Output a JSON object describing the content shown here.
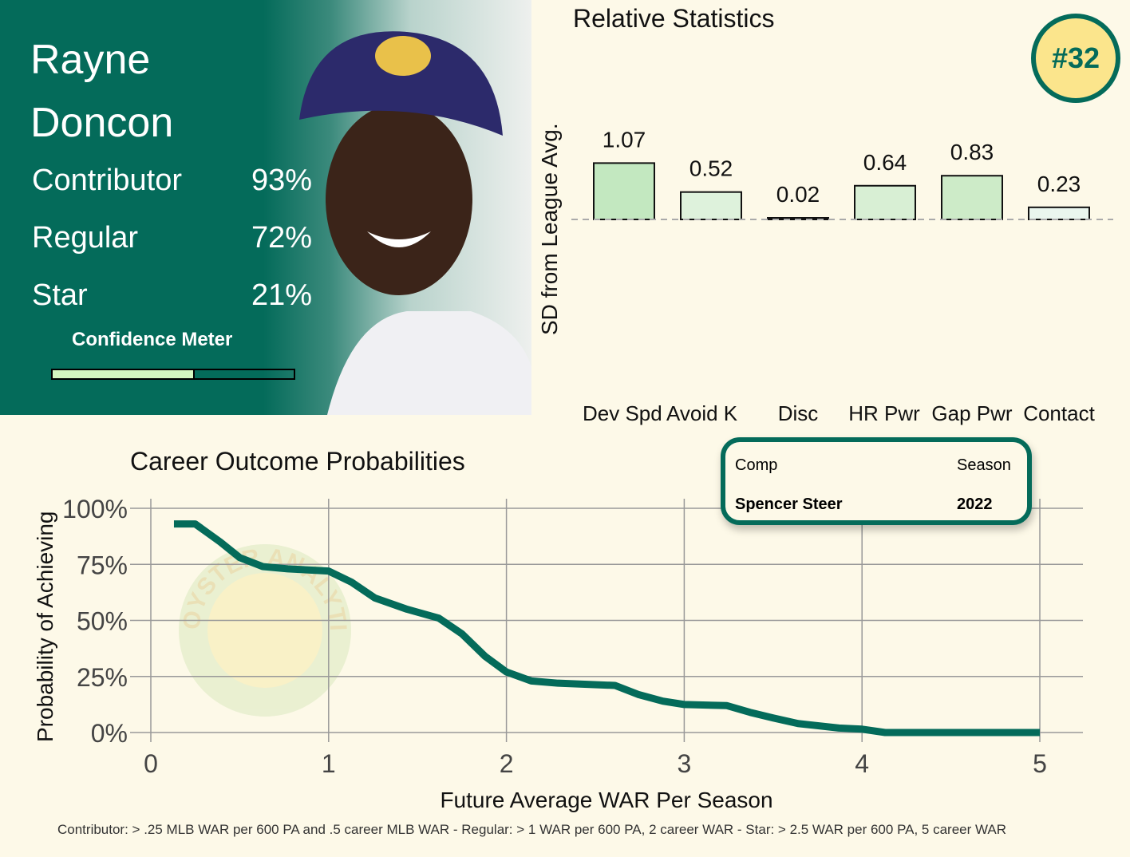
{
  "player": {
    "first_name": "Rayne",
    "last_name": "Doncon",
    "rank": "#32"
  },
  "levels": [
    {
      "label": "Contributor",
      "pct": "93%"
    },
    {
      "label": "Regular",
      "pct": "72%"
    },
    {
      "label": "Star",
      "pct": "21%"
    }
  ],
  "confidence": {
    "label": "Confidence Meter",
    "value": 0.59,
    "fill_color": "#d4f7c0"
  },
  "comp": {
    "comp_header": "Comp",
    "season_header": "Season",
    "comp_name": "Spencer Steer",
    "season": "2022"
  },
  "colors": {
    "brand_green": "#046b5a",
    "badge_yellow": "#fbe58c",
    "background": "#fdf9e8"
  },
  "watermark": "OYSTER ANALYTICS",
  "footnote": "Contributor: > .25 MLB WAR per 600 PA and .5 career MLB WAR - Regular: > 1 WAR per 600 PA, 2 career WAR - Star: > 2.5 WAR per 600 PA, 5 career WAR",
  "chart_data": [
    {
      "type": "bar",
      "title": "Relative Statistics",
      "ylabel": "SD from League Avg.",
      "xlabel": "",
      "categories": [
        "Dev Spd",
        "Avoid K",
        "Disc",
        "HR Pwr",
        "Gap Pwr",
        "Contact"
      ],
      "values": [
        1.07,
        0.52,
        0.02,
        0.64,
        0.83,
        0.23
      ],
      "data_labels": [
        "1.07",
        "0.52",
        "0.02",
        "0.64",
        "0.83",
        "0.23"
      ],
      "ylim": [
        -3,
        1.5
      ],
      "reference_line": 0,
      "bar_colors": [
        "#c3e8c0",
        "#def2dc",
        "#f3f9f3",
        "#d8efd4",
        "#cdebc8",
        "#eaf6ee"
      ]
    },
    {
      "type": "line",
      "title": "Career Outcome Probabilities",
      "xlabel": "Future Average WAR Per Season",
      "ylabel": "Probability of Achieving",
      "xlim": [
        0,
        5
      ],
      "ylim": [
        0,
        100
      ],
      "xticks": [
        "0",
        "1",
        "2",
        "3",
        "4",
        "5"
      ],
      "yticks": [
        "0%",
        "25%",
        "50%",
        "75%",
        "100%"
      ],
      "grid": true,
      "line_color": "#046b5a",
      "x": [
        0.13,
        0.25,
        0.39,
        0.5,
        0.63,
        0.77,
        1.0,
        1.13,
        1.26,
        1.44,
        1.62,
        1.75,
        1.88,
        2.0,
        2.14,
        2.29,
        2.61,
        2.74,
        2.88,
        3.0,
        3.24,
        3.37,
        3.5,
        3.64,
        3.87,
        4.0,
        4.13,
        5.0
      ],
      "y": [
        93,
        93,
        85,
        78,
        74,
        73,
        72,
        67,
        60,
        55,
        51,
        44,
        34,
        27,
        23,
        22,
        21,
        17,
        14,
        12.5,
        12,
        9,
        6.5,
        4,
        2,
        1.5,
        0,
        0
      ]
    }
  ]
}
